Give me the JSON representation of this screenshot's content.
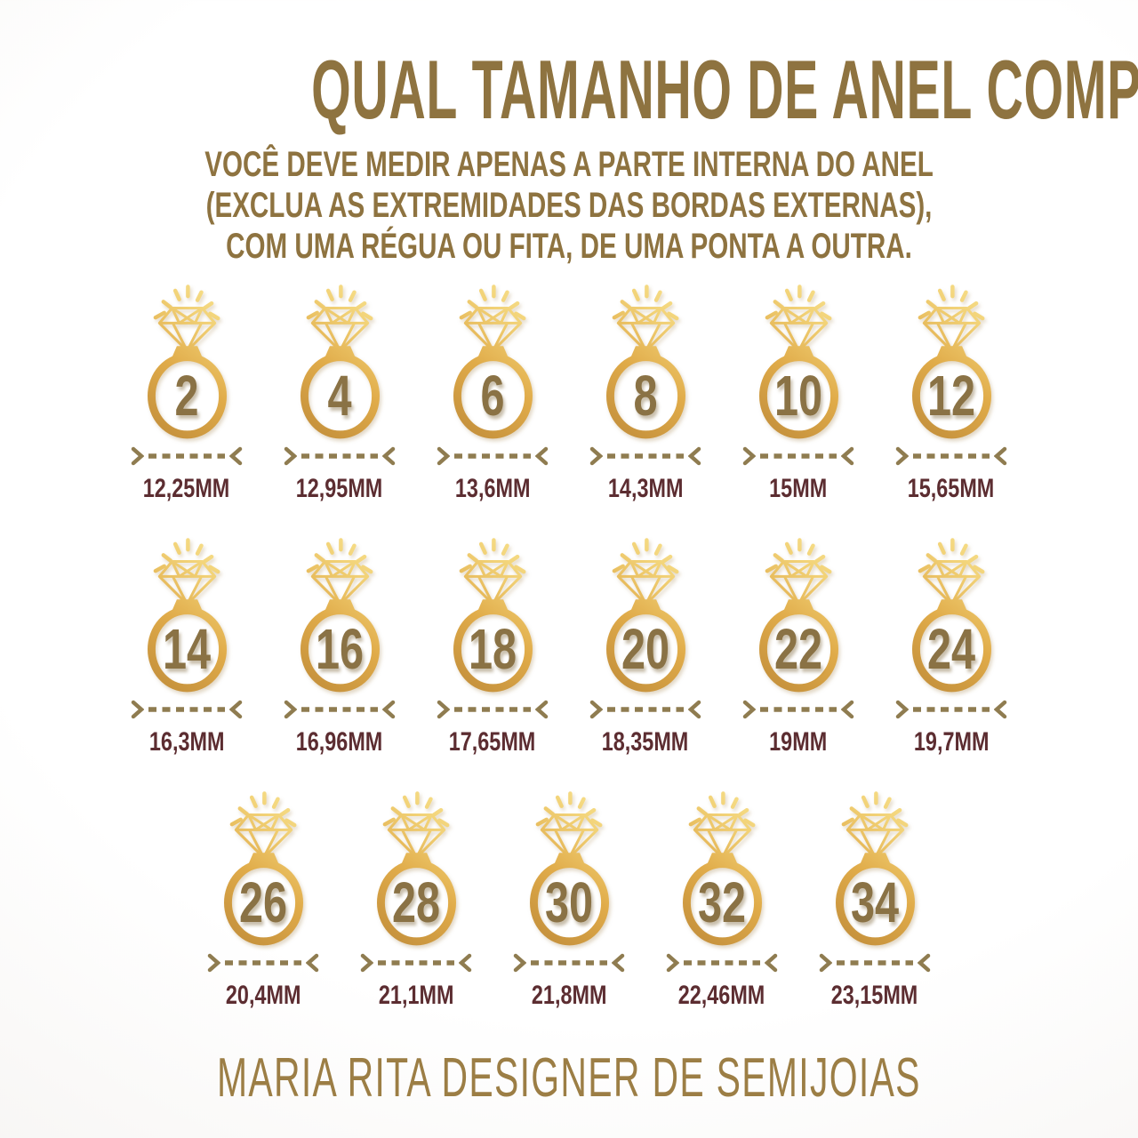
{
  "header": {
    "title": "QUAL TAMANHO DE ANEL COMPRAR?",
    "subtitle_lines": [
      "VOCÊ DEVE MEDIR APENAS A PARTE INTERNA DO ANEL",
      "(EXCLUA AS EXTREMIDADES DAS BORDAS EXTERNAS),",
      "COM UMA RÉGUA OU FITA, DE UMA PONTA A OUTRA."
    ]
  },
  "chart_data": {
    "type": "table",
    "title": "QUAL TAMANHO DE ANEL COMPRAR?",
    "columns": [
      "tamanho_do_anel",
      "diametro_interno"
    ],
    "sizes": [
      {
        "size": "2",
        "diameter": "12,25MM"
      },
      {
        "size": "4",
        "diameter": "12,95MM"
      },
      {
        "size": "6",
        "diameter": "13,6MM"
      },
      {
        "size": "8",
        "diameter": "14,3MM"
      },
      {
        "size": "10",
        "diameter": "15MM"
      },
      {
        "size": "12",
        "diameter": "15,65MM"
      },
      {
        "size": "14",
        "diameter": "16,3MM"
      },
      {
        "size": "16",
        "diameter": "16,96MM"
      },
      {
        "size": "18",
        "diameter": "17,65MM"
      },
      {
        "size": "20",
        "diameter": "18,35MM"
      },
      {
        "size": "22",
        "diameter": "19MM"
      },
      {
        "size": "24",
        "diameter": "19,7MM"
      },
      {
        "size": "26",
        "diameter": "20,4MM"
      },
      {
        "size": "28",
        "diameter": "21,1MM"
      },
      {
        "size": "30",
        "diameter": "21,8MM"
      },
      {
        "size": "32",
        "diameter": "22,46MM"
      },
      {
        "size": "34",
        "diameter": "23,15MM"
      }
    ],
    "layout_rows": [
      6,
      6,
      5
    ],
    "grid": false,
    "legend_position": "none"
  },
  "icons": {
    "ring": "diamond-ring-icon",
    "measure_start": "chevron-right",
    "measure_end": "chevron-left"
  },
  "colors": {
    "title": "#8e7340",
    "subtitle": "#8e7340",
    "ring_number": "#8a7245",
    "diameter_label": "#5c2d31",
    "measure_dash": "#8f7c50",
    "footer": "#9c7e45",
    "gold_1": "#c08c3a",
    "gold_2": "#e0ab49",
    "gold_3": "#f2d277",
    "gold_4": "#f7e08c"
  },
  "footer": {
    "brand": "MARIA RITA DESIGNER DE SEMIJOIAS"
  }
}
